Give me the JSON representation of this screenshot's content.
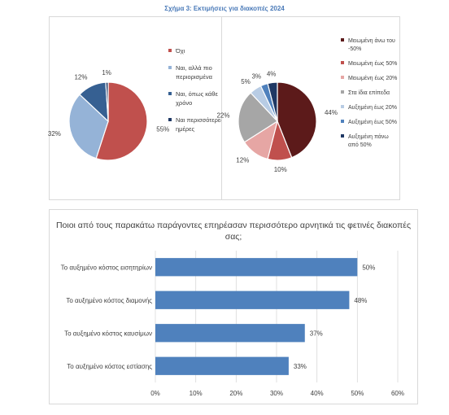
{
  "figure_title": "Σχήμα 3: Εκτιμήσεις για διακοπές 2024",
  "chart_data": [
    {
      "type": "pie",
      "title": "",
      "slices": [
        {
          "label": "Όχι",
          "value": 55,
          "label_text": "55%",
          "color": "#c0504d"
        },
        {
          "label": "Ναι, αλλά πιο περιορισμένα",
          "value": 32,
          "label_text": "32%",
          "color": "#95b3d7"
        },
        {
          "label": "Ναι, όπως κάθε χρόνο",
          "value": 12,
          "label_text": "12%",
          "color": "#366092"
        },
        {
          "label": "Ναι περισσότερες ημέρες",
          "value": 1,
          "label_text": "1%",
          "color": "#1f3864"
        }
      ],
      "legend_position": "right"
    },
    {
      "type": "pie",
      "title": "",
      "slices": [
        {
          "label": "Μειωμένη άνω του -50%",
          "value": 44,
          "label_text": "44%",
          "color": "#5c1a1a"
        },
        {
          "label": "Μειωμένη έως 50%",
          "value": 10,
          "label_text": "10%",
          "color": "#c0504d"
        },
        {
          "label": "Μειωμένη έως 20%",
          "value": 12,
          "label_text": "12%",
          "color": "#e6a6a4"
        },
        {
          "label": "Στα ίδια επίπεδα",
          "value": 22,
          "label_text": "22%",
          "color": "#a6a6a6"
        },
        {
          "label": "Αυξημένη έως 20%",
          "value": 5,
          "label_text": "5%",
          "color": "#b8cce4"
        },
        {
          "label": "Αυξημένη έως 50%",
          "value": 3,
          "label_text": "3%",
          "color": "#4f81bd"
        },
        {
          "label": "Αυξημένη πάνω από 50%",
          "value": 4,
          "label_text": "4%",
          "color": "#1f3864"
        }
      ],
      "legend_position": "right"
    },
    {
      "type": "bar",
      "orientation": "horizontal",
      "title": "Ποιοι από τους παρακάτω παράγοντες επηρέασαν περισσότερο αρνητικά τις φετινές διακοπές σας;",
      "categories": [
        "Το αυξημένο κόστος εισητηρίων",
        "Το αυξημένο κόστος διαμονής",
        "Το αυξημένο κόστος καυσίμων",
        "Το αυξημένο κόστος εστίασης"
      ],
      "values": [
        50,
        48,
        37,
        33
      ],
      "value_labels": [
        "50%",
        "48%",
        "37%",
        "33%"
      ],
      "xlim": [
        0,
        60
      ],
      "xticks": [
        "0%",
        "10%",
        "20%",
        "30%",
        "40%",
        "50%",
        "60%"
      ],
      "bar_color": "#4f81bd",
      "grid": true
    }
  ]
}
